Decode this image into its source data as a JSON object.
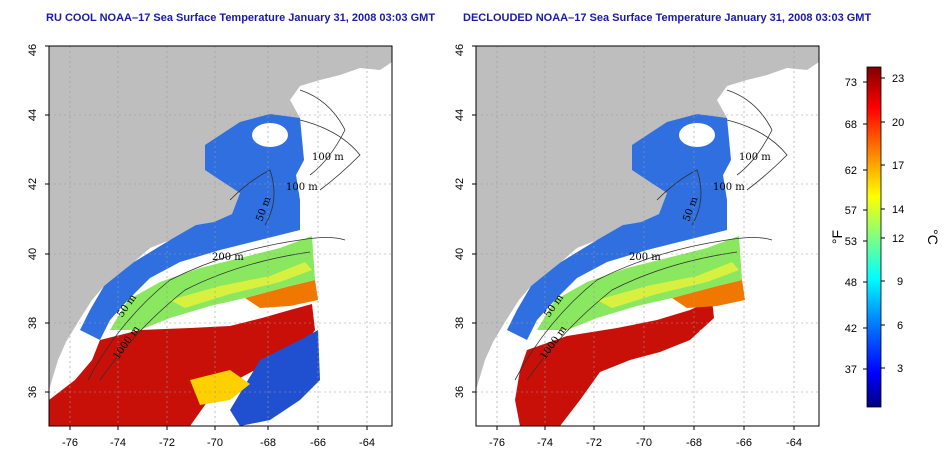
{
  "panels": [
    {
      "title": "RU COOL NOAA–17 Sea Surface Temperature January 31, 2008 03:03 GMT",
      "lat_ticks": [
        "36",
        "38",
        "40",
        "42",
        "44",
        "46"
      ],
      "lon_ticks": [
        "-76",
        "-74",
        "-72",
        "-70",
        "-68",
        "-66",
        "-64"
      ],
      "contour_labels": [
        "100 m",
        "100 m",
        "50 m",
        "200 m",
        "50 m",
        "1000 m"
      ]
    },
    {
      "title": "DECLOUDED NOAA–17 Sea Surface Temperature January 31, 2008 03:03 GMT",
      "lat_ticks": [
        "36",
        "38",
        "40",
        "42",
        "44",
        "46"
      ],
      "lon_ticks": [
        "-76",
        "-74",
        "-72",
        "-70",
        "-68",
        "-66",
        "-64"
      ],
      "contour_labels": [
        "100 m",
        "100 m",
        "50 m",
        "200 m",
        "50 m",
        "1000 m"
      ]
    }
  ],
  "colorbar": {
    "fahrenheit_ticks": [
      "73",
      "68",
      "62",
      "57",
      "53",
      "48",
      "42",
      "37"
    ],
    "celsius_ticks": [
      "23",
      "20",
      "17",
      "14",
      "12",
      "9",
      "6",
      "3"
    ],
    "fahrenheit_unit": "°F",
    "celsius_unit": "°C",
    "colors": [
      "#000080",
      "#0000ff",
      "#0080ff",
      "#00ffff",
      "#80ff80",
      "#ffff00",
      "#ff8000",
      "#ff0000",
      "#800000"
    ]
  },
  "colors": {
    "land": "#bebebe",
    "ocean_unsampled": "#ffffff",
    "grid": "#9a9a9a"
  }
}
